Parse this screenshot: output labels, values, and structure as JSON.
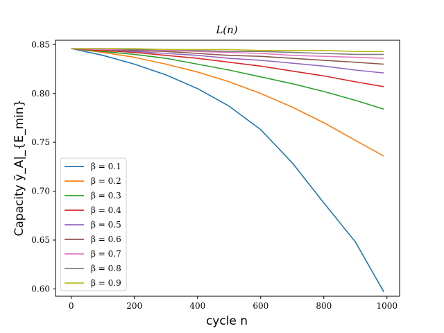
{
  "chart_data": {
    "type": "line",
    "title": "L(n)",
    "xlabel": "cycle n",
    "ylabel": "Capacity ȳ_A|_{E_min}",
    "xlim": [
      -50,
      1040
    ],
    "ylim": [
      0.5925,
      0.8545
    ],
    "xticks": [
      0,
      200,
      400,
      600,
      800,
      1000
    ],
    "xtick_labels": [
      "0",
      "200",
      "400",
      "600",
      "800",
      "1000"
    ],
    "yticks": [
      0.6,
      0.65,
      0.7,
      0.75,
      0.8,
      0.85
    ],
    "ytick_labels": [
      "0.60",
      "0.65",
      "0.70",
      "0.75",
      "0.80",
      "0.85"
    ],
    "grid": false,
    "legend_position": "lower-left",
    "x": [
      0,
      100,
      200,
      300,
      400,
      500,
      600,
      700,
      800,
      900,
      990
    ],
    "series": [
      {
        "name": "β = 0.1",
        "color": "#1f77b4",
        "values": [
          0.846,
          0.839,
          0.83,
          0.819,
          0.805,
          0.787,
          0.763,
          0.729,
          0.688,
          0.648,
          0.597
        ]
      },
      {
        "name": "β = 0.2",
        "color": "#ff7f0e",
        "values": [
          0.846,
          0.842,
          0.837,
          0.83,
          0.822,
          0.812,
          0.8,
          0.786,
          0.77,
          0.752,
          0.736
        ]
      },
      {
        "name": "β = 0.3",
        "color": "#2ca02c",
        "values": [
          0.846,
          0.843,
          0.84,
          0.836,
          0.83,
          0.824,
          0.817,
          0.81,
          0.802,
          0.793,
          0.784
        ]
      },
      {
        "name": "β = 0.4",
        "color": "#d62728",
        "values": [
          0.846,
          0.844,
          0.842,
          0.839,
          0.836,
          0.832,
          0.828,
          0.823,
          0.818,
          0.812,
          0.807
        ]
      },
      {
        "name": "β = 0.5",
        "color": "#9467bd",
        "values": [
          0.846,
          0.845,
          0.843,
          0.841,
          0.839,
          0.836,
          0.834,
          0.831,
          0.828,
          0.824,
          0.821
        ]
      },
      {
        "name": "β = 0.6",
        "color": "#8c564b",
        "values": [
          0.846,
          0.845,
          0.844,
          0.843,
          0.841,
          0.839,
          0.838,
          0.836,
          0.834,
          0.832,
          0.83
        ]
      },
      {
        "name": "β = 0.7",
        "color": "#e377c2",
        "values": [
          0.846,
          0.845,
          0.845,
          0.844,
          0.843,
          0.842,
          0.841,
          0.839,
          0.838,
          0.837,
          0.836
        ]
      },
      {
        "name": "β = 0.8",
        "color": "#7f7f7f",
        "values": [
          0.846,
          0.846,
          0.845,
          0.845,
          0.844,
          0.843,
          0.843,
          0.842,
          0.841,
          0.84,
          0.84
        ]
      },
      {
        "name": "β = 0.9",
        "color": "#bcbd22",
        "values": [
          0.846,
          0.846,
          0.846,
          0.845,
          0.845,
          0.845,
          0.844,
          0.844,
          0.844,
          0.843,
          0.843
        ]
      }
    ]
  }
}
